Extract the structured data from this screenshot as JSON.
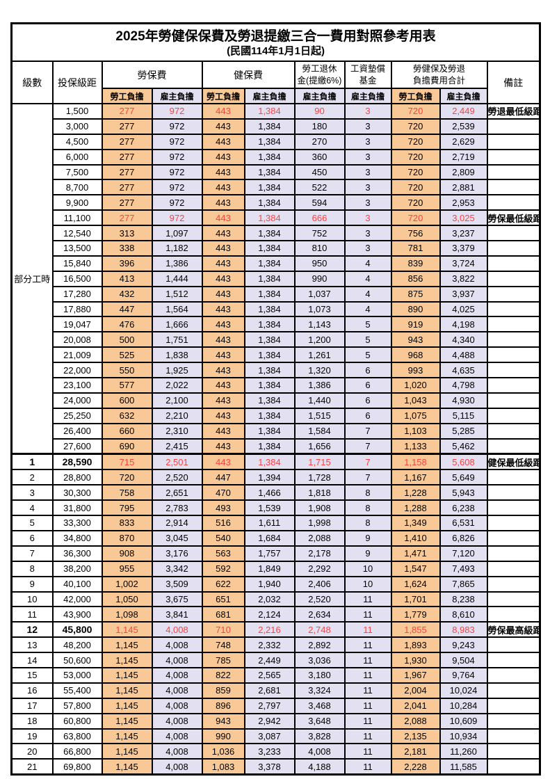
{
  "title": "2025年勞健保保費及勞退提繳三合一費用對照參考用表",
  "subtitle": "(民國114年1月1日起)",
  "header": {
    "level": "級數",
    "bracket": "投保級距",
    "labor_insurance": "勞保費",
    "health_insurance": "健保費",
    "pension_line1": "勞工退休",
    "pension_line2": "金(提繳6%)",
    "wage_fund_line1": "工資墊償",
    "wage_fund_line2": "基金",
    "total_line1": "勞健保及勞退",
    "total_line2": "負擔費用合計",
    "note": "備註",
    "employee_share": "勞工負擔",
    "employer_share": "雇主負擔"
  },
  "part_time_label": "部分工時",
  "colors": {
    "employee_col_bg": "#F8C996",
    "employer_col_bg": "#E3E1F1",
    "highlight_red": "#FF4040",
    "note_red": "#FF5050",
    "subheader_text": "#8B3626",
    "border": "#000000"
  },
  "rows": [
    {
      "level": "",
      "bracket": "1,500",
      "v": [
        "277",
        "972",
        "443",
        "1,384",
        "90",
        "3",
        "720",
        "2,449"
      ],
      "note": "勞退最低級距",
      "hl": true,
      "bold": false
    },
    {
      "level": "",
      "bracket": "3,000",
      "v": [
        "277",
        "972",
        "443",
        "1,384",
        "180",
        "3",
        "720",
        "2,539"
      ],
      "note": "",
      "hl": false,
      "bold": false
    },
    {
      "level": "",
      "bracket": "4,500",
      "v": [
        "277",
        "972",
        "443",
        "1,384",
        "270",
        "3",
        "720",
        "2,629"
      ],
      "note": "",
      "hl": false,
      "bold": false
    },
    {
      "level": "",
      "bracket": "6,000",
      "v": [
        "277",
        "972",
        "443",
        "1,384",
        "360",
        "3",
        "720",
        "2,719"
      ],
      "note": "",
      "hl": false,
      "bold": false
    },
    {
      "level": "",
      "bracket": "7,500",
      "v": [
        "277",
        "972",
        "443",
        "1,384",
        "450",
        "3",
        "720",
        "2,809"
      ],
      "note": "",
      "hl": false,
      "bold": false
    },
    {
      "level": "",
      "bracket": "8,700",
      "v": [
        "277",
        "972",
        "443",
        "1,384",
        "522",
        "3",
        "720",
        "2,881"
      ],
      "note": "",
      "hl": false,
      "bold": false
    },
    {
      "level": "",
      "bracket": "9,900",
      "v": [
        "277",
        "972",
        "443",
        "1,384",
        "594",
        "3",
        "720",
        "2,953"
      ],
      "note": "",
      "hl": false,
      "bold": false
    },
    {
      "level": "",
      "bracket": "11,100",
      "v": [
        "277",
        "972",
        "443",
        "1,384",
        "666",
        "3",
        "720",
        "3,025"
      ],
      "note": "勞保最低級距",
      "hl": true,
      "bold": false
    },
    {
      "level": "",
      "bracket": "12,540",
      "v": [
        "313",
        "1,097",
        "443",
        "1,384",
        "752",
        "3",
        "756",
        "3,237"
      ],
      "note": "",
      "hl": false,
      "bold": false
    },
    {
      "level": "",
      "bracket": "13,500",
      "v": [
        "338",
        "1,182",
        "443",
        "1,384",
        "810",
        "3",
        "781",
        "3,379"
      ],
      "note": "",
      "hl": false,
      "bold": false
    },
    {
      "level": "",
      "bracket": "15,840",
      "v": [
        "396",
        "1,386",
        "443",
        "1,384",
        "950",
        "4",
        "839",
        "3,724"
      ],
      "note": "",
      "hl": false,
      "bold": false
    },
    {
      "level": "",
      "bracket": "16,500",
      "v": [
        "413",
        "1,444",
        "443",
        "1,384",
        "990",
        "4",
        "856",
        "3,822"
      ],
      "note": "",
      "hl": false,
      "bold": false
    },
    {
      "level": "",
      "bracket": "17,280",
      "v": [
        "432",
        "1,512",
        "443",
        "1,384",
        "1,037",
        "4",
        "875",
        "3,937"
      ],
      "note": "",
      "hl": false,
      "bold": false
    },
    {
      "level": "",
      "bracket": "17,880",
      "v": [
        "447",
        "1,564",
        "443",
        "1,384",
        "1,073",
        "4",
        "890",
        "4,025"
      ],
      "note": "",
      "hl": false,
      "bold": false
    },
    {
      "level": "",
      "bracket": "19,047",
      "v": [
        "476",
        "1,666",
        "443",
        "1,384",
        "1,143",
        "5",
        "919",
        "4,198"
      ],
      "note": "",
      "hl": false,
      "bold": false
    },
    {
      "level": "",
      "bracket": "20,008",
      "v": [
        "500",
        "1,751",
        "443",
        "1,384",
        "1,200",
        "5",
        "943",
        "4,340"
      ],
      "note": "",
      "hl": false,
      "bold": false
    },
    {
      "level": "",
      "bracket": "21,009",
      "v": [
        "525",
        "1,838",
        "443",
        "1,384",
        "1,261",
        "5",
        "968",
        "4,488"
      ],
      "note": "",
      "hl": false,
      "bold": false
    },
    {
      "level": "",
      "bracket": "22,000",
      "v": [
        "550",
        "1,925",
        "443",
        "1,384",
        "1,320",
        "6",
        "993",
        "4,635"
      ],
      "note": "",
      "hl": false,
      "bold": false
    },
    {
      "level": "",
      "bracket": "23,100",
      "v": [
        "577",
        "2,022",
        "443",
        "1,384",
        "1,386",
        "6",
        "1,020",
        "4,798"
      ],
      "note": "",
      "hl": false,
      "bold": false
    },
    {
      "level": "",
      "bracket": "24,000",
      "v": [
        "600",
        "2,100",
        "443",
        "1,384",
        "1,440",
        "6",
        "1,043",
        "4,930"
      ],
      "note": "",
      "hl": false,
      "bold": false
    },
    {
      "level": "",
      "bracket": "25,250",
      "v": [
        "632",
        "2,210",
        "443",
        "1,384",
        "1,515",
        "6",
        "1,075",
        "5,115"
      ],
      "note": "",
      "hl": false,
      "bold": false
    },
    {
      "level": "",
      "bracket": "26,400",
      "v": [
        "660",
        "2,310",
        "443",
        "1,384",
        "1,584",
        "7",
        "1,103",
        "5,285"
      ],
      "note": "",
      "hl": false,
      "bold": false
    },
    {
      "level": "",
      "bracket": "27,600",
      "v": [
        "690",
        "2,415",
        "443",
        "1,384",
        "1,656",
        "7",
        "1,133",
        "5,462"
      ],
      "note": "",
      "hl": false,
      "bold": false
    },
    {
      "level": "1",
      "bracket": "28,590",
      "v": [
        "715",
        "2,501",
        "443",
        "1,384",
        "1,715",
        "7",
        "1,158",
        "5,608"
      ],
      "note": "健保最低級距",
      "hl": true,
      "bold": true
    },
    {
      "level": "2",
      "bracket": "28,800",
      "v": [
        "720",
        "2,520",
        "447",
        "1,394",
        "1,728",
        "7",
        "1,167",
        "5,649"
      ],
      "note": "",
      "hl": false,
      "bold": false
    },
    {
      "level": "3",
      "bracket": "30,300",
      "v": [
        "758",
        "2,651",
        "470",
        "1,466",
        "1,818",
        "8",
        "1,228",
        "5,943"
      ],
      "note": "",
      "hl": false,
      "bold": false
    },
    {
      "level": "4",
      "bracket": "31,800",
      "v": [
        "795",
        "2,783",
        "493",
        "1,539",
        "1,908",
        "8",
        "1,288",
        "6,238"
      ],
      "note": "",
      "hl": false,
      "bold": false
    },
    {
      "level": "5",
      "bracket": "33,300",
      "v": [
        "833",
        "2,914",
        "516",
        "1,611",
        "1,998",
        "8",
        "1,349",
        "6,531"
      ],
      "note": "",
      "hl": false,
      "bold": false
    },
    {
      "level": "6",
      "bracket": "34,800",
      "v": [
        "870",
        "3,045",
        "540",
        "1,684",
        "2,088",
        "9",
        "1,410",
        "6,826"
      ],
      "note": "",
      "hl": false,
      "bold": false
    },
    {
      "level": "7",
      "bracket": "36,300",
      "v": [
        "908",
        "3,176",
        "563",
        "1,757",
        "2,178",
        "9",
        "1,471",
        "7,120"
      ],
      "note": "",
      "hl": false,
      "bold": false
    },
    {
      "level": "8",
      "bracket": "38,200",
      "v": [
        "955",
        "3,342",
        "592",
        "1,849",
        "2,292",
        "10",
        "1,547",
        "7,493"
      ],
      "note": "",
      "hl": false,
      "bold": false
    },
    {
      "level": "9",
      "bracket": "40,100",
      "v": [
        "1,002",
        "3,509",
        "622",
        "1,940",
        "2,406",
        "10",
        "1,624",
        "7,865"
      ],
      "note": "",
      "hl": false,
      "bold": false
    },
    {
      "level": "10",
      "bracket": "42,000",
      "v": [
        "1,050",
        "3,675",
        "651",
        "2,032",
        "2,520",
        "11",
        "1,701",
        "8,238"
      ],
      "note": "",
      "hl": false,
      "bold": false
    },
    {
      "level": "11",
      "bracket": "43,900",
      "v": [
        "1,098",
        "3,841",
        "681",
        "2,124",
        "2,634",
        "11",
        "1,779",
        "8,610"
      ],
      "note": "",
      "hl": false,
      "bold": false
    },
    {
      "level": "12",
      "bracket": "45,800",
      "v": [
        "1,145",
        "4,008",
        "710",
        "2,216",
        "2,748",
        "11",
        "1,855",
        "8,983"
      ],
      "note": "勞保最高級距",
      "hl": true,
      "bold": true
    },
    {
      "level": "13",
      "bracket": "48,200",
      "v": [
        "1,145",
        "4,008",
        "748",
        "2,332",
        "2,892",
        "11",
        "1,893",
        "9,243"
      ],
      "note": "",
      "hl": false,
      "bold": false
    },
    {
      "level": "14",
      "bracket": "50,600",
      "v": [
        "1,145",
        "4,008",
        "785",
        "2,449",
        "3,036",
        "11",
        "1,930",
        "9,504"
      ],
      "note": "",
      "hl": false,
      "bold": false
    },
    {
      "level": "15",
      "bracket": "53,000",
      "v": [
        "1,145",
        "4,008",
        "822",
        "2,565",
        "3,180",
        "11",
        "1,967",
        "9,764"
      ],
      "note": "",
      "hl": false,
      "bold": false
    },
    {
      "level": "16",
      "bracket": "55,400",
      "v": [
        "1,145",
        "4,008",
        "859",
        "2,681",
        "3,324",
        "11",
        "2,004",
        "10,024"
      ],
      "note": "",
      "hl": false,
      "bold": false
    },
    {
      "level": "17",
      "bracket": "57,800",
      "v": [
        "1,145",
        "4,008",
        "896",
        "2,797",
        "3,468",
        "11",
        "2,041",
        "10,284"
      ],
      "note": "",
      "hl": false,
      "bold": false
    },
    {
      "level": "18",
      "bracket": "60,800",
      "v": [
        "1,145",
        "4,008",
        "943",
        "2,942",
        "3,648",
        "11",
        "2,088",
        "10,609"
      ],
      "note": "",
      "hl": false,
      "bold": false
    },
    {
      "level": "19",
      "bracket": "63,800",
      "v": [
        "1,145",
        "4,008",
        "990",
        "3,087",
        "3,828",
        "11",
        "2,135",
        "10,934"
      ],
      "note": "",
      "hl": false,
      "bold": false
    },
    {
      "level": "20",
      "bracket": "66,800",
      "v": [
        "1,145",
        "4,008",
        "1,036",
        "3,233",
        "4,008",
        "11",
        "2,181",
        "11,260"
      ],
      "note": "",
      "hl": false,
      "bold": false
    },
    {
      "level": "21",
      "bracket": "69,800",
      "v": [
        "1,145",
        "4,008",
        "1,083",
        "3,378",
        "4,188",
        "11",
        "2,228",
        "11,585"
      ],
      "note": "",
      "hl": false,
      "bold": false
    }
  ]
}
